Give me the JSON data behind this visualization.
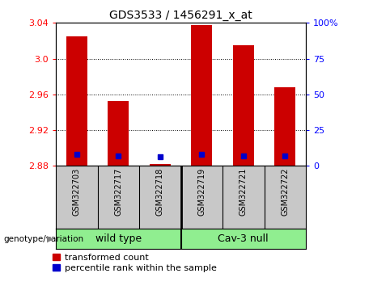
{
  "title": "GDS3533 / 1456291_x_at",
  "samples": [
    "GSM322703",
    "GSM322717",
    "GSM322718",
    "GSM322719",
    "GSM322721",
    "GSM322722"
  ],
  "red_values": [
    3.025,
    2.953,
    2.882,
    3.038,
    3.015,
    2.968
  ],
  "blue_values": [
    2.893,
    2.891,
    2.89,
    2.893,
    2.891,
    2.891
  ],
  "ylim_left": [
    2.88,
    3.04
  ],
  "yticks_left": [
    2.88,
    2.92,
    2.96,
    3.0,
    3.04
  ],
  "yticks_right_vals": [
    0,
    25,
    50,
    75,
    100
  ],
  "yticks_right_labels": [
    "0",
    "25",
    "50",
    "75",
    "100%"
  ],
  "bar_color": "#cc0000",
  "blue_color": "#0000cc",
  "bar_width": 0.5,
  "tick_area_bg": "#c8c8c8",
  "group_bg": "#90ee90",
  "legend_red_label": "transformed count",
  "legend_blue_label": "percentile rank within the sample",
  "wild_type_indices": [
    0,
    1,
    2
  ],
  "cav3_null_indices": [
    3,
    4,
    5
  ]
}
